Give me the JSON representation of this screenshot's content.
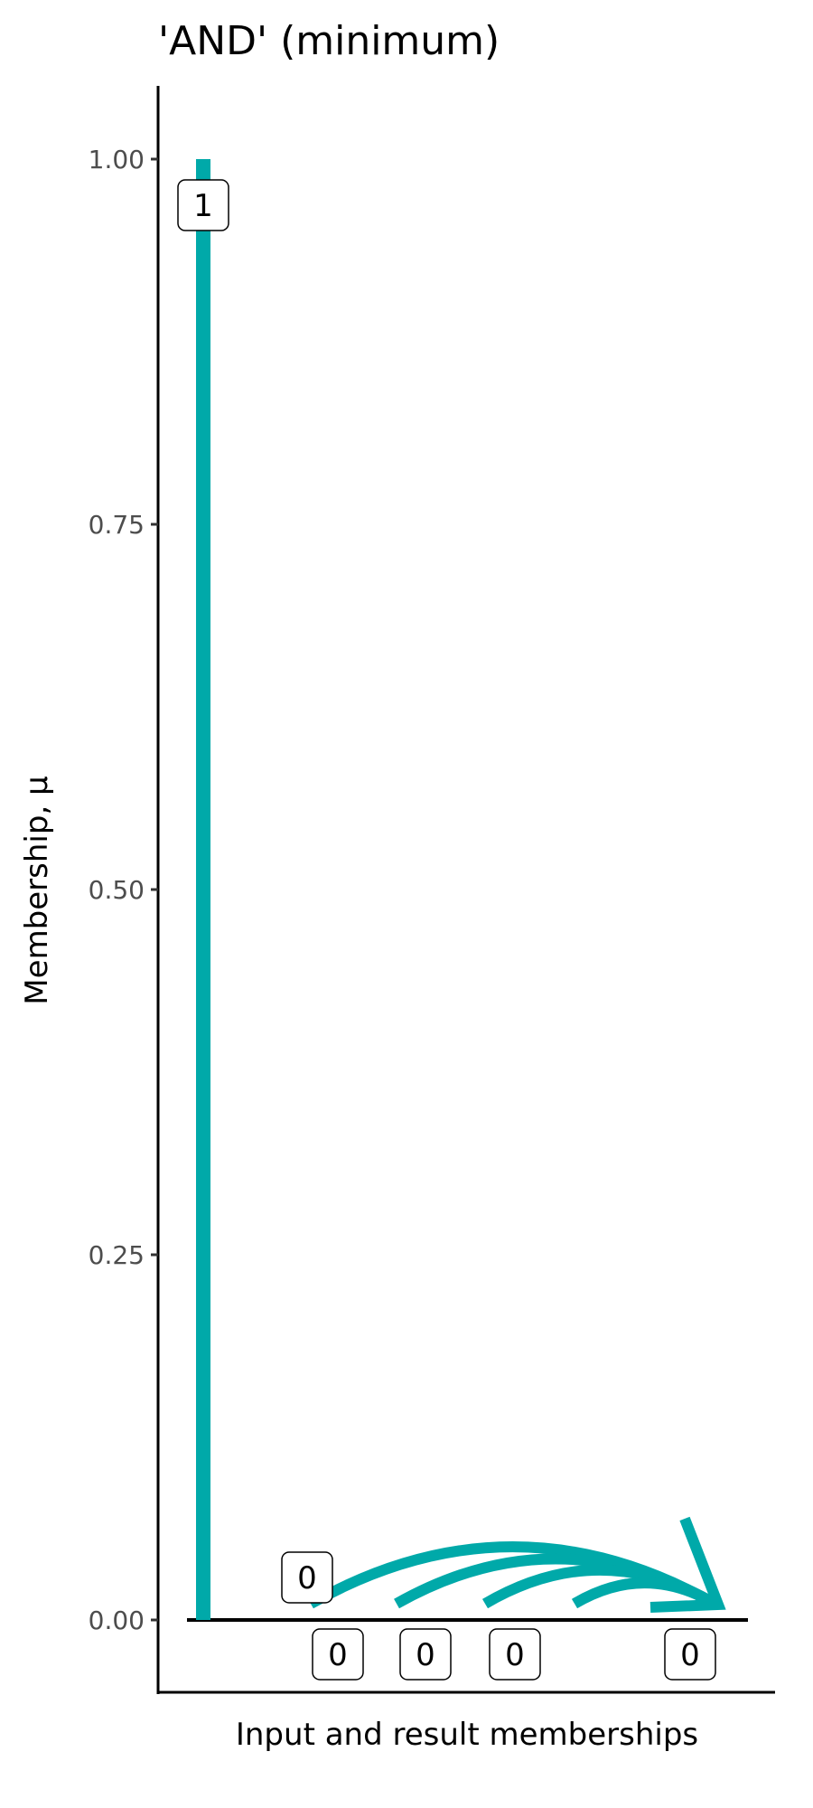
{
  "chart_data": {
    "type": "line",
    "title": "'AND' (minimum)",
    "xlabel": "Input and result memberships",
    "ylabel": "Membership, μ",
    "ylim": [
      0,
      1
    ],
    "yticks": [
      "0.00",
      "0.25",
      "0.50",
      "0.75",
      "1.00"
    ],
    "ytick_values": [
      0,
      0.25,
      0.5,
      0.75,
      1
    ],
    "grid": false,
    "color": "#00A9A9",
    "bar": {
      "value": 1,
      "label": "1"
    },
    "inputs": [
      {
        "value": 0,
        "label": "0"
      },
      {
        "value": 0,
        "label": "0"
      },
      {
        "value": 0,
        "label": "0"
      },
      {
        "value": 0,
        "label": "0"
      }
    ],
    "extra_label": "0",
    "result": {
      "value": 0,
      "label": "0"
    }
  }
}
